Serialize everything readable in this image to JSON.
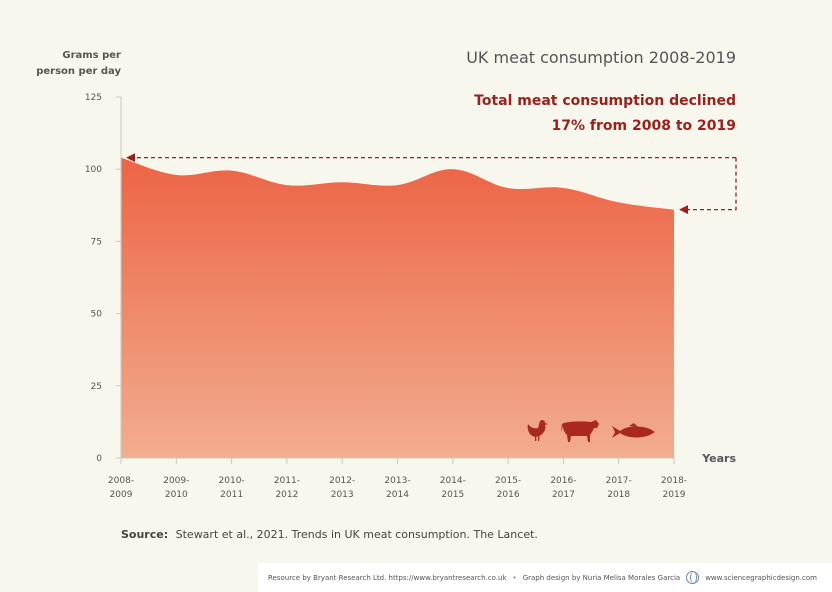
{
  "chart_data": {
    "type": "area",
    "title": "UK meat consumption 2008-2019",
    "annotation": [
      "Total meat consumption declined",
      "17% from 2008 to 2019"
    ],
    "ylabel": [
      "Grams per",
      "person per day"
    ],
    "xlabel": "Years",
    "ylim": [
      0,
      125
    ],
    "yticks": [
      0,
      25,
      50,
      75,
      100,
      125
    ],
    "categories": [
      "2008-\n2009",
      "2009-\n2010",
      "2010-\n2011",
      "2011-\n2012",
      "2012-\n2013",
      "2013-\n2014",
      "2014-\n2015",
      "2015-\n2016",
      "2016-\n2017",
      "2017-\n2018",
      "2018-\n2019"
    ],
    "values": [
      104,
      98,
      99.5,
      94.5,
      95.5,
      94.5,
      100,
      93.5,
      93.5,
      88.5,
      86
    ],
    "grid": false,
    "colors": {
      "area_top": "#ec6445",
      "area_bottom": "#f2ad8f",
      "accent": "#9e1f1a",
      "icons": "#a9281f"
    }
  },
  "icons": [
    "chicken-icon",
    "cow-icon",
    "fish-icon"
  ],
  "source": {
    "label": "Source:",
    "text": "Stewart et al., 2021. Trends in UK meat consumption. The Lancet."
  },
  "footer": {
    "resource": "Resource by Bryant Research Ltd.  https://www.bryantresearch.co.uk",
    "separator": "•",
    "design": "Graph design by Nuria Melisa Morales Garcia",
    "website": "www.sciencegraphicdesign.com"
  }
}
